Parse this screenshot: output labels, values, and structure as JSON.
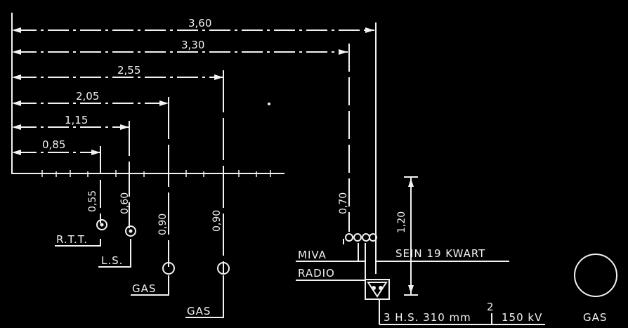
{
  "horizontal_dimensions": [
    "3,60",
    "3,30",
    "2,55",
    "2,05",
    "1,15",
    "0,85"
  ],
  "vertical_dimensions": [
    "0,55",
    "0,60",
    "0,90",
    "0,90",
    "0,70",
    "1,20"
  ],
  "cable_labels": {
    "rtt": "R.T.T.",
    "ls": "L.S.",
    "gas_1": "GAS",
    "gas_2": "GAS",
    "miva": "MIVA",
    "radio": "RADIO",
    "sein": "SEIN 19 KWART",
    "hs": "3 H.S. 310 mm",
    "hs_exponent": "2",
    "hs_voltage": "150 kV",
    "gas_legend": "GAS"
  },
  "colors": {
    "background": "#000000",
    "ink": "#f2f2f2"
  }
}
